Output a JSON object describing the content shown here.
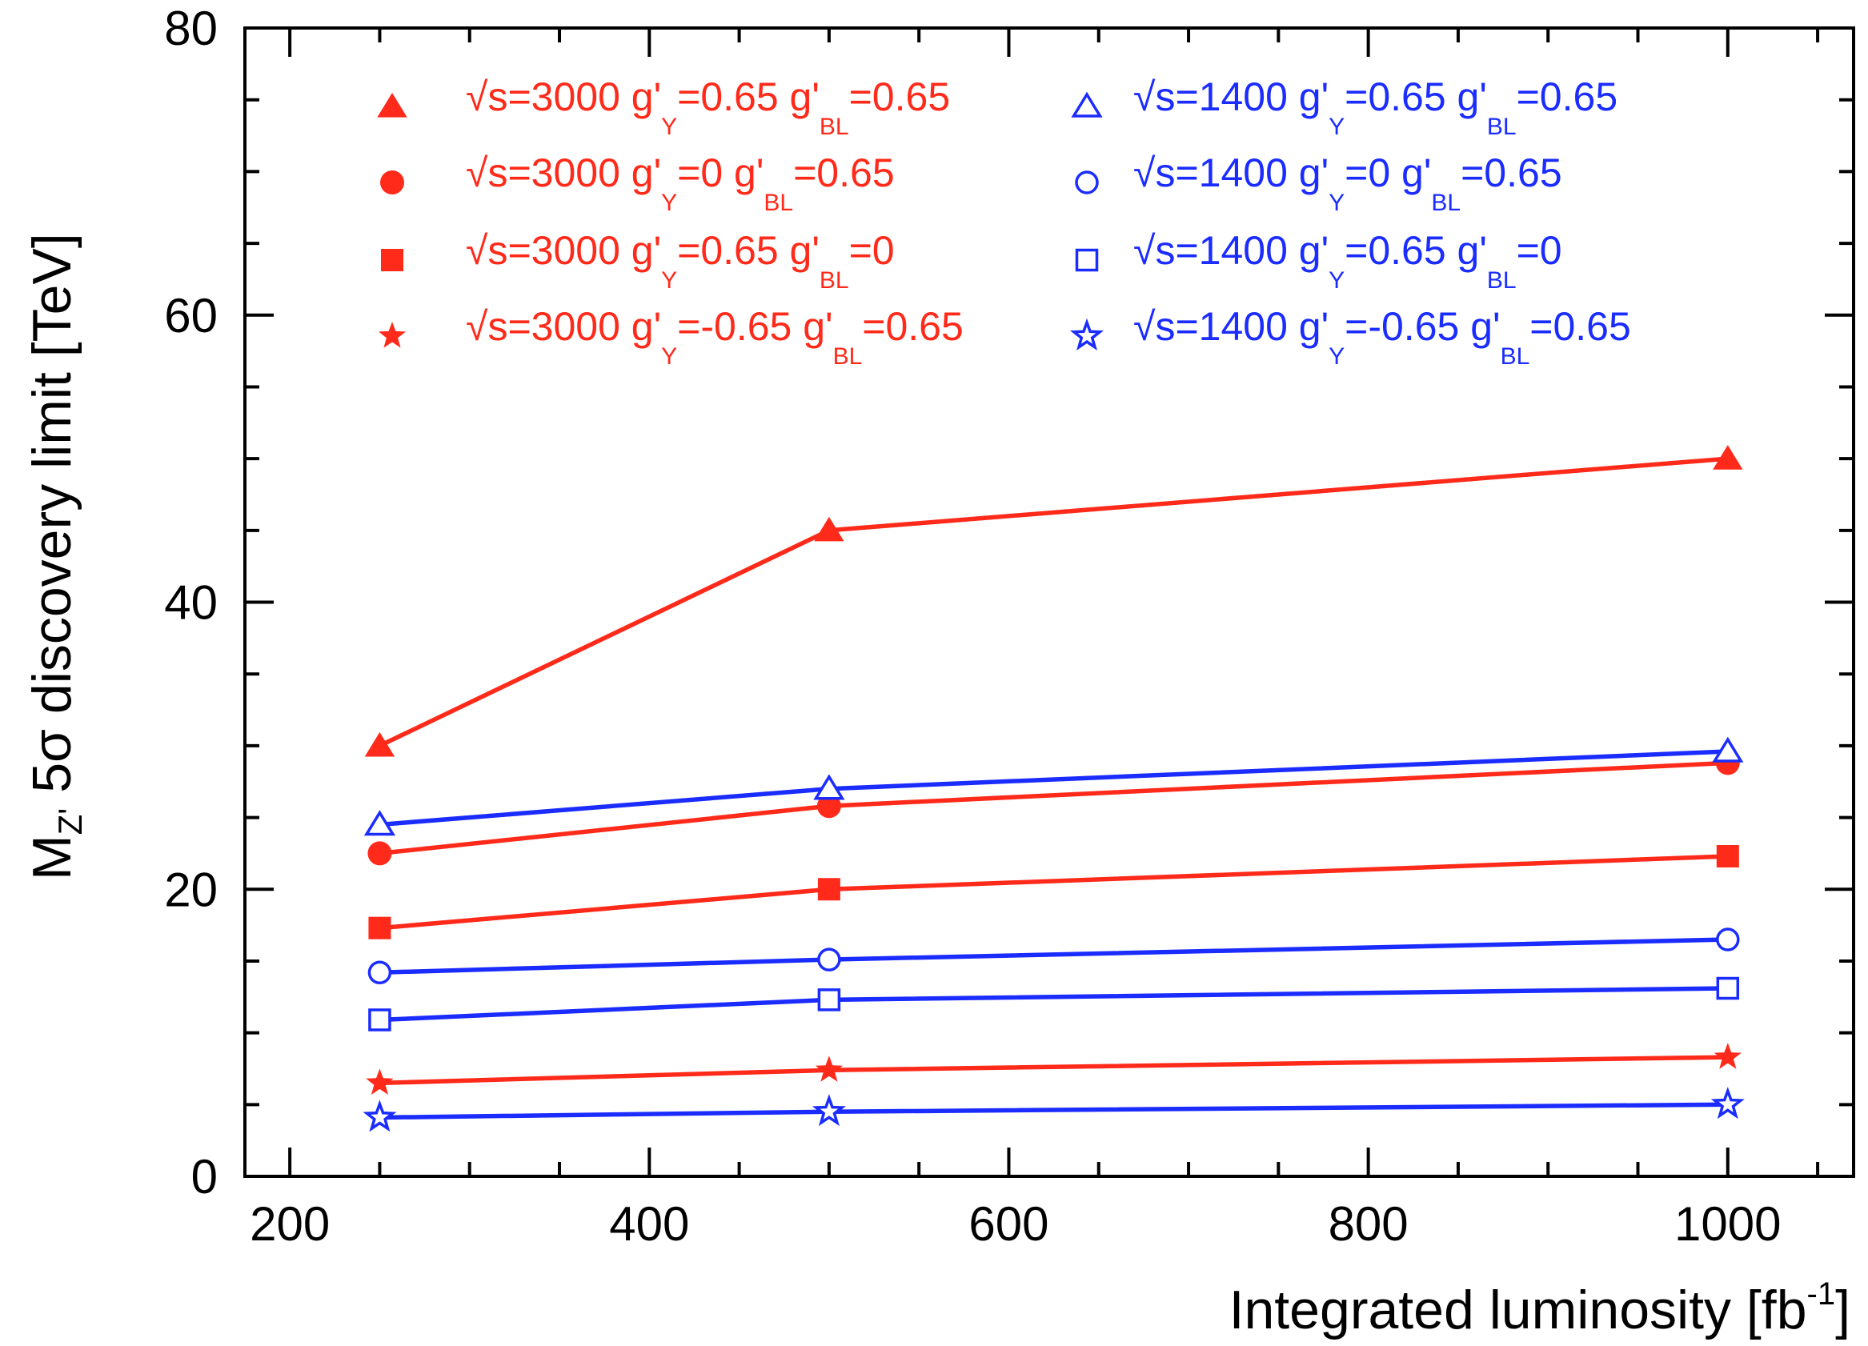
{
  "chart_data": {
    "type": "line",
    "xlabel": "Integrated luminosity [fb",
    "xlabel_sup": "-1",
    "xlabel_end": "]",
    "ylabel_main": "M",
    "ylabel_sub": "Z'",
    "ylabel_rest": " 5σ discovery limit [TeV]",
    "xlim": [
      175,
      1070
    ],
    "ylim": [
      0,
      80
    ],
    "x_major_ticks": [
      200,
      400,
      600,
      800,
      1000
    ],
    "x_tick_labels": [
      "200",
      "400",
      "600",
      "800",
      "1000"
    ],
    "y_major_ticks": [
      0,
      20,
      40,
      60,
      80
    ],
    "y_tick_labels": [
      "0",
      "20",
      "40",
      "60",
      "80"
    ],
    "x": [
      250,
      500,
      1000
    ],
    "colors": {
      "s3000": "#ff2a1a",
      "s1400": "#1a2cff"
    },
    "series": [
      {
        "legend": [
          "√s=3000 g'",
          "Y",
          "=0.65 g'",
          "BL",
          "=0.65"
        ],
        "marker": "triangle",
        "filled": true,
        "color": "#ff2a1a",
        "values": [
          30,
          45,
          50
        ]
      },
      {
        "legend": [
          "√s=3000 g'",
          "Y",
          "=0 g'",
          "BL",
          "=0.65"
        ],
        "marker": "circle",
        "filled": true,
        "color": "#ff2a1a",
        "values": [
          22.5,
          25.8,
          28.8
        ]
      },
      {
        "legend": [
          "√s=3000 g'",
          "Y",
          "=0.65 g'",
          "BL",
          "=0"
        ],
        "marker": "square",
        "filled": true,
        "color": "#ff2a1a",
        "values": [
          17.3,
          20,
          22.3
        ]
      },
      {
        "legend": [
          "√s=3000 g'",
          "Y",
          "=-0.65 g'",
          "BL",
          "=0.65"
        ],
        "marker": "star",
        "filled": true,
        "color": "#ff2a1a",
        "values": [
          6.5,
          7.4,
          8.3
        ]
      },
      {
        "legend": [
          "√s=1400 g'",
          "Y",
          "=0.65 g'",
          "BL",
          "=0.65"
        ],
        "marker": "triangle",
        "filled": false,
        "color": "#1a2cff",
        "values": [
          24.5,
          27,
          29.6
        ]
      },
      {
        "legend": [
          "√s=1400 g'",
          "Y",
          "=0 g'",
          "BL",
          "=0.65"
        ],
        "marker": "circle",
        "filled": false,
        "color": "#1a2cff",
        "values": [
          14.2,
          15.1,
          16.5
        ]
      },
      {
        "legend": [
          "√s=1400 g'",
          "Y",
          "=0.65 g'",
          "BL",
          "=0"
        ],
        "marker": "square",
        "filled": false,
        "color": "#1a2cff",
        "values": [
          10.9,
          12.3,
          13.1
        ]
      },
      {
        "legend": [
          "√s=1400 g'",
          "Y",
          "=-0.65 g'",
          "BL",
          "=0.65"
        ],
        "marker": "star",
        "filled": false,
        "color": "#1a2cff",
        "values": [
          4.1,
          4.5,
          5.0
        ]
      }
    ],
    "legend_placement": "top",
    "grid": false
  }
}
